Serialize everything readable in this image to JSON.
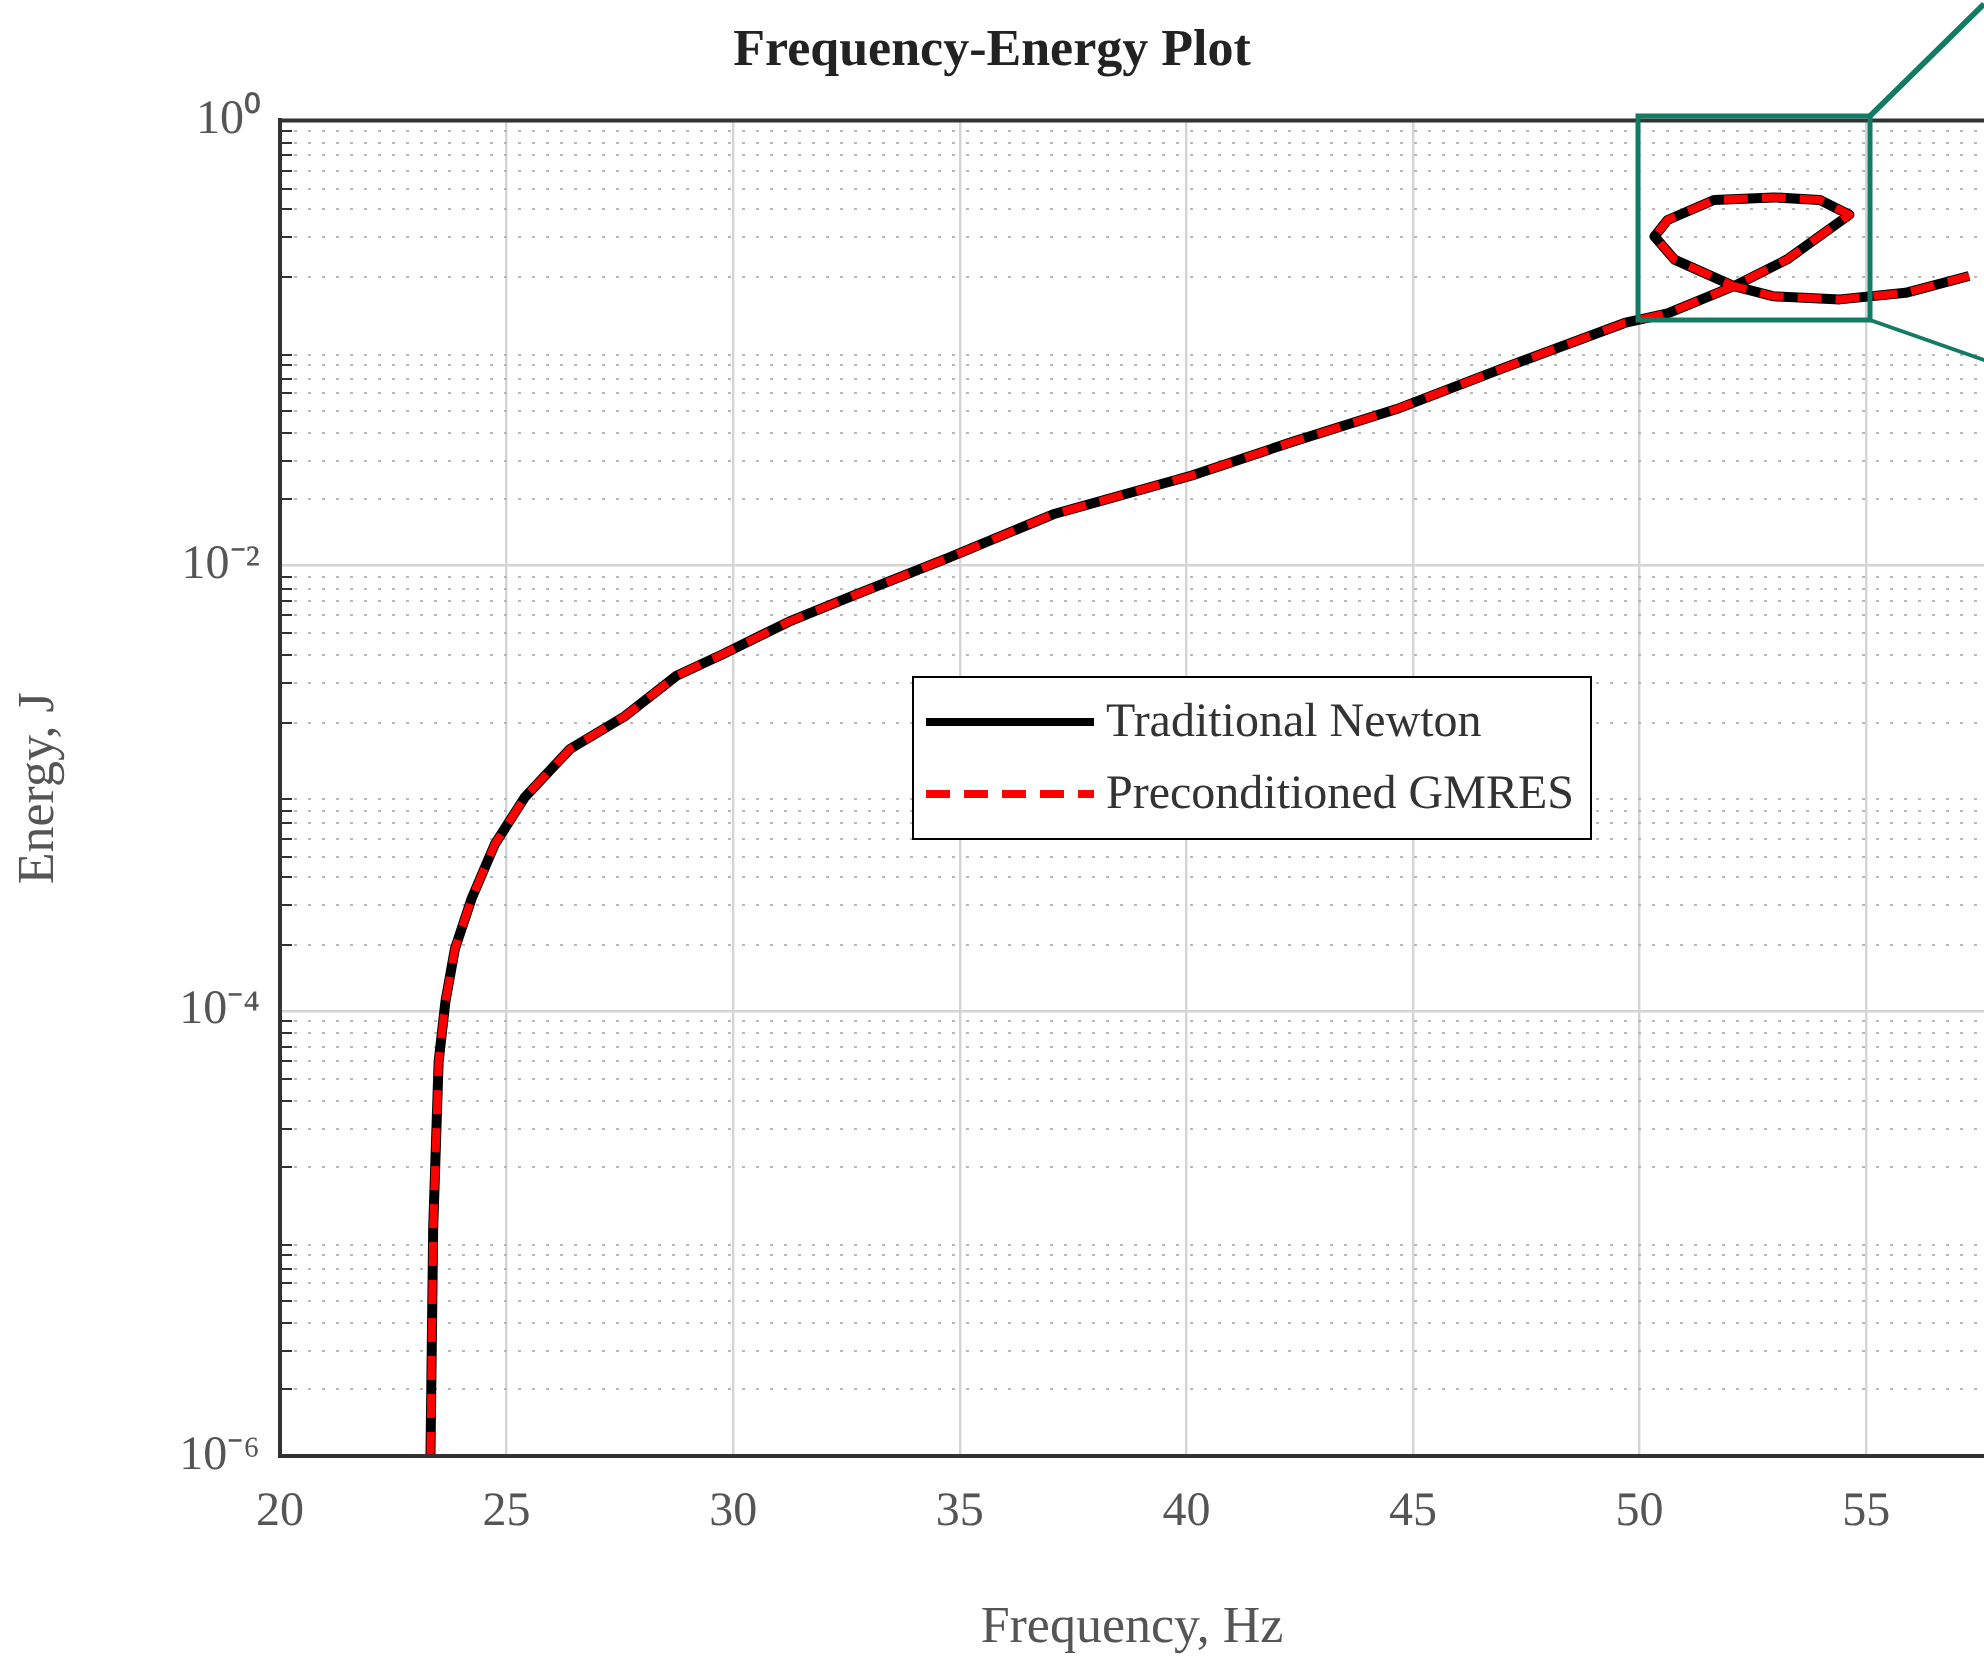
{
  "chart_data": {
    "type": "line",
    "title": "Frequency-Energy Plot",
    "xlabel": "Frequency, Hz",
    "ylabel": "Energy, J",
    "xlim": [
      20,
      57.6
    ],
    "xticks": [
      20,
      25,
      30,
      35,
      40,
      45,
      50,
      55
    ],
    "ylim": [
      1e-06,
      1
    ],
    "yticks": [
      {
        "value": 1e-06,
        "label": "10⁻⁶"
      },
      {
        "value": 0.0001,
        "label": "10⁻⁴"
      },
      {
        "value": 0.01,
        "label": "10⁻²"
      },
      {
        "value": 1,
        "label": "10⁰"
      }
    ],
    "log": "y",
    "grid": true,
    "legend": "center",
    "marker": "none",
    "series": [
      {
        "name": "Traditional Newton",
        "color": "#000000",
        "line_style": "solid",
        "x": [
          23.32,
          23.38,
          23.5,
          23.65,
          23.86,
          24.23,
          24.74,
          25.4,
          26.4,
          27.6,
          28.75,
          29.77,
          31.23,
          32.7,
          34.73,
          37.06,
          40.12,
          42.31,
          44.64,
          47.12,
          49.67,
          50.62,
          52.08,
          53.25,
          54.63,
          53.98,
          52.96,
          51.64,
          50.62,
          50.33,
          50.77,
          52.08,
          52.96,
          54.42,
          55.87,
          57.27
        ],
        "values": [
          1e-06,
          1.05e-05,
          5.9e-05,
          0.00011,
          0.00019,
          0.00032,
          0.00056,
          0.00091,
          0.0015,
          0.0021,
          0.0032,
          0.004,
          0.0056,
          0.0074,
          0.0108,
          0.017,
          0.0254,
          0.0358,
          0.0505,
          0.0789,
          0.123,
          0.136,
          0.18,
          0.237,
          0.377,
          0.439,
          0.451,
          0.439,
          0.357,
          0.301,
          0.237,
          0.18,
          0.162,
          0.157,
          0.168,
          0.2
        ]
      },
      {
        "name": "Preconditioned GMRES",
        "color": "#ff0000",
        "line_style": "dashed",
        "x": [
          23.32,
          23.38,
          23.5,
          23.65,
          23.86,
          24.23,
          24.74,
          25.4,
          26.4,
          27.6,
          28.75,
          29.77,
          31.23,
          32.7,
          34.73,
          37.06,
          40.12,
          42.31,
          44.64,
          47.12,
          49.67,
          50.62,
          52.08,
          53.25,
          54.63,
          53.98,
          52.96,
          51.64,
          50.62,
          50.33,
          50.77,
          52.08,
          52.96,
          54.42,
          55.87,
          57.27
        ],
        "values": [
          1e-06,
          1.05e-05,
          5.9e-05,
          0.00011,
          0.00019,
          0.00032,
          0.00056,
          0.00091,
          0.0015,
          0.0021,
          0.0032,
          0.004,
          0.0056,
          0.0074,
          0.0108,
          0.017,
          0.0254,
          0.0358,
          0.0505,
          0.0789,
          0.123,
          0.136,
          0.18,
          0.237,
          0.377,
          0.439,
          0.451,
          0.439,
          0.357,
          0.301,
          0.237,
          0.18,
          0.162,
          0.157,
          0.168,
          0.2
        ]
      }
    ]
  }
}
